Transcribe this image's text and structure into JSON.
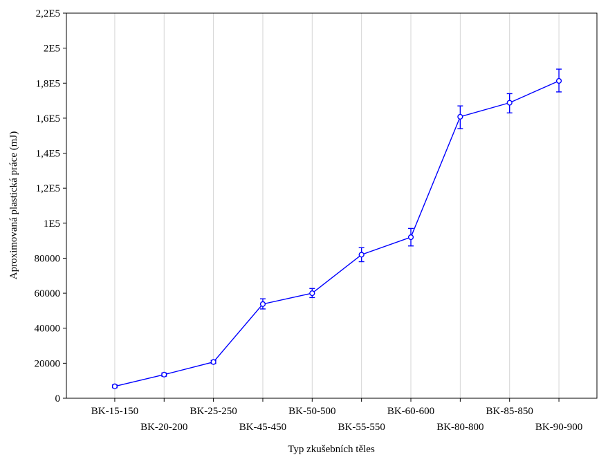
{
  "chart_data": {
    "type": "line",
    "xlabel": "Typ zkušebních těles",
    "ylabel": "Aproximovaná plastická práce (mJ)",
    "categories": [
      "BK-15-150",
      "BK-20-200",
      "BK-25-250",
      "BK-45-450",
      "BK-50-500",
      "BK-55-550",
      "BK-60-600",
      "BK-80-800",
      "BK-85-850",
      "BK-90-900"
    ],
    "series": [
      {
        "values": [
          6800,
          13500,
          20700,
          53800,
          60000,
          82000,
          92000,
          160800,
          168800,
          181300
        ],
        "error_low": [
          6000,
          12600,
          19800,
          51000,
          57500,
          78000,
          87000,
          154000,
          163000,
          175000
        ],
        "error_high": [
          7600,
          14400,
          21600,
          56800,
          62700,
          86000,
          97000,
          167000,
          174000,
          188000
        ],
        "color": "#0000ff",
        "marker": "circle"
      }
    ],
    "ylim": [
      0,
      220000
    ],
    "yticks": [
      0,
      20000,
      40000,
      60000,
      80000,
      100000,
      120000,
      140000,
      160000,
      180000,
      200000,
      220000
    ],
    "ytick_labels": [
      "0",
      "20000",
      "40000",
      "60000",
      "80000",
      "1E5",
      "1,2E5",
      "1,4E5",
      "1,6E5",
      "1,8E5",
      "2E5",
      "2,2E5"
    ],
    "grid": true,
    "grid_axis": "x",
    "legend": false
  }
}
